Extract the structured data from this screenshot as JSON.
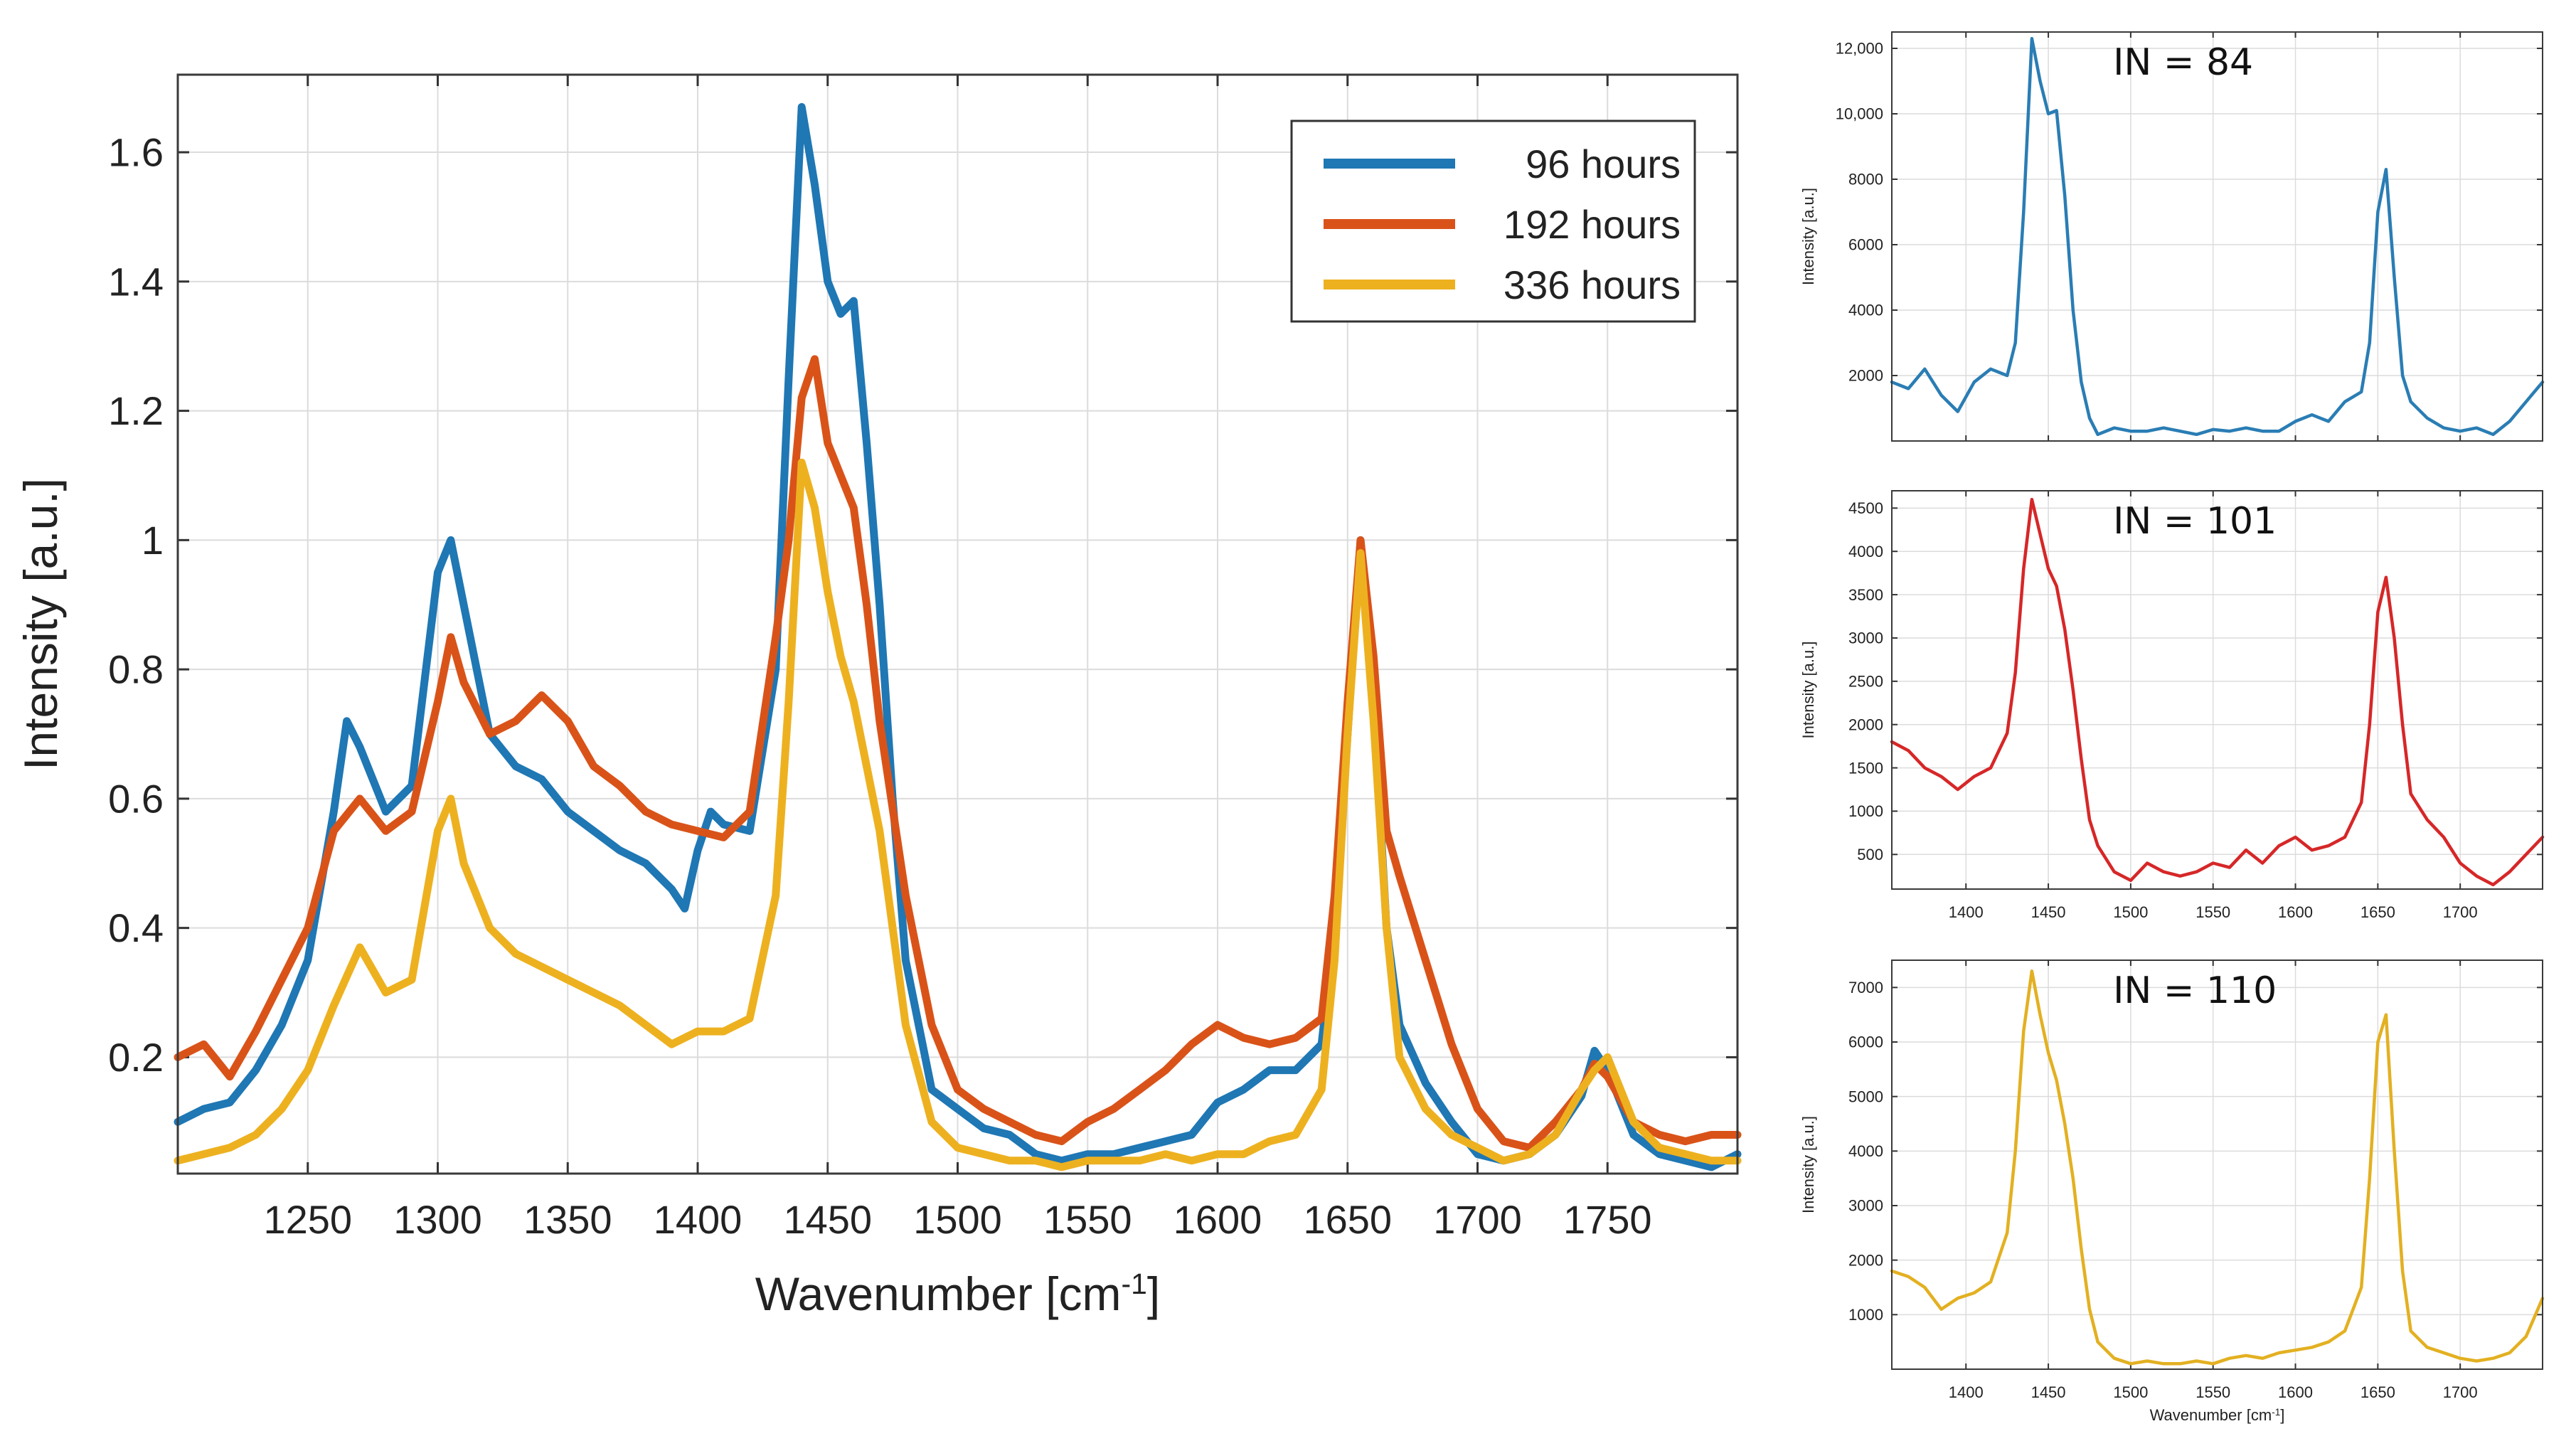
{
  "chart_data": [
    {
      "type": "line",
      "xlabel": "Wavenumber [cm",
      "xlabel_sup": "-1",
      "xlabel_close": "]",
      "ylabel": "Intensity [a.u.]",
      "xlim": [
        1200,
        1800
      ],
      "ylim": [
        0.02,
        1.72
      ],
      "xticks": [
        1250,
        1300,
        1350,
        1400,
        1450,
        1500,
        1550,
        1600,
        1650,
        1700,
        1750
      ],
      "yticks": [
        0.2,
        0.4,
        0.6,
        0.8,
        1.0
      ],
      "ytick_labels": [
        "0.2",
        "0.4",
        "0.6",
        "0.8",
        "1"
      ],
      "yticks_upper": [
        1.2,
        1.4,
        1.6
      ],
      "ytick_labels_upper": [
        "1.2",
        "1.4",
        "1.6"
      ],
      "grid": true,
      "legend_position": "top-right",
      "series": [
        {
          "name": "96 hours",
          "color": "#1f77b4",
          "x": [
            1200,
            1210,
            1220,
            1230,
            1240,
            1250,
            1260,
            1265,
            1270,
            1280,
            1290,
            1300,
            1305,
            1310,
            1320,
            1330,
            1340,
            1350,
            1360,
            1370,
            1380,
            1390,
            1395,
            1400,
            1405,
            1410,
            1420,
            1430,
            1435,
            1440,
            1445,
            1450,
            1455,
            1460,
            1465,
            1470,
            1475,
            1480,
            1490,
            1500,
            1510,
            1520,
            1530,
            1540,
            1550,
            1560,
            1570,
            1580,
            1590,
            1600,
            1610,
            1620,
            1630,
            1640,
            1645,
            1650,
            1655,
            1660,
            1665,
            1670,
            1680,
            1690,
            1700,
            1710,
            1720,
            1730,
            1740,
            1745,
            1750,
            1760,
            1770,
            1780,
            1790,
            1800
          ],
          "y": [
            0.1,
            0.12,
            0.13,
            0.18,
            0.25,
            0.35,
            0.58,
            0.72,
            0.68,
            0.58,
            0.62,
            0.95,
            1.0,
            0.9,
            0.7,
            0.65,
            0.63,
            0.58,
            0.55,
            0.52,
            0.5,
            0.46,
            0.43,
            0.52,
            0.58,
            0.56,
            0.55,
            0.8,
            1.25,
            1.67,
            1.55,
            1.4,
            1.35,
            1.37,
            1.15,
            0.9,
            0.6,
            0.35,
            0.15,
            0.12,
            0.09,
            0.08,
            0.05,
            0.04,
            0.05,
            0.05,
            0.06,
            0.07,
            0.08,
            0.13,
            0.15,
            0.18,
            0.18,
            0.22,
            0.4,
            0.7,
            1.0,
            0.75,
            0.4,
            0.25,
            0.16,
            0.1,
            0.05,
            0.04,
            0.05,
            0.08,
            0.14,
            0.21,
            0.18,
            0.08,
            0.05,
            0.04,
            0.03,
            0.05
          ]
        },
        {
          "name": "192 hours",
          "color": "#d95319",
          "x": [
            1200,
            1210,
            1220,
            1230,
            1240,
            1250,
            1260,
            1270,
            1280,
            1290,
            1300,
            1305,
            1310,
            1320,
            1330,
            1340,
            1350,
            1360,
            1370,
            1380,
            1390,
            1400,
            1410,
            1420,
            1430,
            1435,
            1440,
            1445,
            1450,
            1455,
            1460,
            1465,
            1470,
            1480,
            1490,
            1500,
            1510,
            1520,
            1530,
            1540,
            1550,
            1560,
            1570,
            1580,
            1590,
            1600,
            1610,
            1620,
            1630,
            1640,
            1645,
            1650,
            1655,
            1660,
            1665,
            1670,
            1680,
            1690,
            1700,
            1710,
            1720,
            1730,
            1740,
            1745,
            1750,
            1760,
            1770,
            1780,
            1790,
            1800
          ],
          "y": [
            0.2,
            0.22,
            0.17,
            0.24,
            0.32,
            0.4,
            0.55,
            0.6,
            0.55,
            0.58,
            0.75,
            0.85,
            0.78,
            0.7,
            0.72,
            0.76,
            0.72,
            0.65,
            0.62,
            0.58,
            0.56,
            0.55,
            0.54,
            0.58,
            0.85,
            1.0,
            1.22,
            1.28,
            1.15,
            1.1,
            1.05,
            0.9,
            0.72,
            0.45,
            0.25,
            0.15,
            0.12,
            0.1,
            0.08,
            0.07,
            0.1,
            0.12,
            0.15,
            0.18,
            0.22,
            0.25,
            0.23,
            0.22,
            0.23,
            0.26,
            0.45,
            0.75,
            1.0,
            0.82,
            0.55,
            0.48,
            0.35,
            0.22,
            0.12,
            0.07,
            0.06,
            0.1,
            0.15,
            0.19,
            0.17,
            0.1,
            0.08,
            0.07,
            0.08,
            0.08
          ]
        },
        {
          "name": "336 hours",
          "color": "#edb120",
          "x": [
            1200,
            1210,
            1220,
            1230,
            1240,
            1250,
            1260,
            1270,
            1280,
            1290,
            1300,
            1305,
            1310,
            1320,
            1330,
            1340,
            1350,
            1360,
            1370,
            1380,
            1390,
            1400,
            1410,
            1420,
            1430,
            1435,
            1440,
            1445,
            1450,
            1455,
            1460,
            1470,
            1480,
            1490,
            1500,
            1510,
            1520,
            1530,
            1540,
            1550,
            1560,
            1570,
            1580,
            1590,
            1600,
            1610,
            1620,
            1630,
            1640,
            1645,
            1650,
            1655,
            1660,
            1665,
            1670,
            1680,
            1690,
            1700,
            1710,
            1720,
            1730,
            1740,
            1745,
            1750,
            1760,
            1770,
            1780,
            1790,
            1800
          ],
          "y": [
            0.04,
            0.05,
            0.06,
            0.08,
            0.12,
            0.18,
            0.28,
            0.37,
            0.3,
            0.32,
            0.55,
            0.6,
            0.5,
            0.4,
            0.36,
            0.34,
            0.32,
            0.3,
            0.28,
            0.25,
            0.22,
            0.24,
            0.24,
            0.26,
            0.45,
            0.75,
            1.12,
            1.05,
            0.92,
            0.82,
            0.75,
            0.55,
            0.25,
            0.1,
            0.06,
            0.05,
            0.04,
            0.04,
            0.03,
            0.04,
            0.04,
            0.04,
            0.05,
            0.04,
            0.05,
            0.05,
            0.07,
            0.08,
            0.15,
            0.35,
            0.7,
            0.98,
            0.72,
            0.4,
            0.2,
            0.12,
            0.08,
            0.06,
            0.04,
            0.05,
            0.08,
            0.15,
            0.18,
            0.2,
            0.1,
            0.06,
            0.05,
            0.04,
            0.04
          ]
        }
      ]
    },
    {
      "type": "line",
      "annotation": "IN = 84",
      "ylabel": "Intensity [a.u.]",
      "xlim": [
        1355,
        1750
      ],
      "ylim": [
        0,
        12500
      ],
      "yticks": [
        2000,
        4000,
        6000,
        8000,
        10000,
        12000
      ],
      "ytick_labels": [
        "2000",
        "4000",
        "6000",
        "8000",
        "10,000",
        "12,000"
      ],
      "xticks": [
        1400,
        1450,
        1500,
        1550,
        1600,
        1650,
        1700
      ],
      "show_xtick_labels": false,
      "grid": true,
      "series": [
        {
          "name": "IN = 84",
          "color": "#2a7db4",
          "x": [
            1355,
            1365,
            1375,
            1385,
            1395,
            1405,
            1415,
            1425,
            1430,
            1435,
            1440,
            1445,
            1450,
            1455,
            1460,
            1465,
            1470,
            1475,
            1480,
            1490,
            1500,
            1510,
            1520,
            1530,
            1540,
            1550,
            1560,
            1570,
            1580,
            1590,
            1600,
            1610,
            1620,
            1630,
            1640,
            1645,
            1650,
            1655,
            1660,
            1665,
            1670,
            1680,
            1690,
            1700,
            1710,
            1720,
            1730,
            1740,
            1750
          ],
          "y": [
            1800,
            1600,
            2200,
            1400,
            900,
            1800,
            2200,
            2000,
            3000,
            7000,
            12300,
            11000,
            10000,
            10100,
            7500,
            4000,
            1800,
            700,
            200,
            400,
            300,
            300,
            400,
            300,
            200,
            350,
            300,
            400,
            300,
            300,
            600,
            800,
            600,
            1200,
            1500,
            3000,
            7000,
            8300,
            5000,
            2000,
            1200,
            700,
            400,
            300,
            400,
            200,
            600,
            1200,
            1800
          ]
        }
      ]
    },
    {
      "type": "line",
      "annotation": "IN = 101",
      "ylabel": "Intensity [a.u.]",
      "xlim": [
        1355,
        1750
      ],
      "ylim": [
        100,
        4700
      ],
      "yticks": [
        500,
        1000,
        1500,
        2000,
        2500,
        3000,
        3500,
        4000,
        4500
      ],
      "ytick_labels": [
        "500",
        "1000",
        "1500",
        "2000",
        "2500",
        "3000",
        "3500",
        "4000",
        "4500"
      ],
      "xticks": [
        1400,
        1450,
        1500,
        1550,
        1600,
        1650,
        1700
      ],
      "xtick_labels": [
        "1400",
        "1450",
        "1500",
        "1550",
        "1600",
        "1650",
        "1700"
      ],
      "grid": true,
      "series": [
        {
          "name": "IN = 101",
          "color": "#d62728",
          "x": [
            1355,
            1365,
            1375,
            1385,
            1395,
            1405,
            1415,
            1425,
            1430,
            1435,
            1440,
            1445,
            1450,
            1455,
            1460,
            1465,
            1470,
            1475,
            1480,
            1490,
            1500,
            1510,
            1520,
            1530,
            1540,
            1550,
            1560,
            1570,
            1580,
            1590,
            1600,
            1610,
            1620,
            1630,
            1640,
            1645,
            1650,
            1655,
            1660,
            1665,
            1670,
            1680,
            1690,
            1700,
            1710,
            1720,
            1730,
            1740,
            1750
          ],
          "y": [
            1800,
            1700,
            1500,
            1400,
            1250,
            1400,
            1500,
            1900,
            2600,
            3800,
            4600,
            4200,
            3800,
            3600,
            3100,
            2400,
            1600,
            900,
            600,
            300,
            200,
            400,
            300,
            250,
            300,
            400,
            350,
            550,
            400,
            600,
            700,
            550,
            600,
            700,
            1100,
            2000,
            3300,
            3700,
            3000,
            2000,
            1200,
            900,
            700,
            400,
            250,
            150,
            300,
            500,
            700
          ]
        }
      ]
    },
    {
      "type": "line",
      "annotation": "IN = 110",
      "ylabel": "Intensity [a.u.]",
      "xlabel": "Wavenumber [cm",
      "xlabel_sup": "-1",
      "xlabel_close": "]",
      "xlim": [
        1355,
        1750
      ],
      "ylim": [
        0,
        7500
      ],
      "yticks": [
        1000,
        2000,
        3000,
        4000,
        5000,
        6000,
        7000
      ],
      "ytick_labels": [
        "1000",
        "2000",
        "3000",
        "4000",
        "5000",
        "6000",
        "7000"
      ],
      "xticks": [
        1400,
        1450,
        1500,
        1550,
        1600,
        1650,
        1700
      ],
      "xtick_labels": [
        "1400",
        "1450",
        "1500",
        "1550",
        "1600",
        "1650",
        "1700"
      ],
      "grid": true,
      "series": [
        {
          "name": "IN = 110",
          "color": "#e3b021",
          "x": [
            1355,
            1365,
            1375,
            1385,
            1395,
            1405,
            1415,
            1425,
            1430,
            1435,
            1440,
            1445,
            1450,
            1455,
            1460,
            1465,
            1470,
            1475,
            1480,
            1490,
            1500,
            1510,
            1520,
            1530,
            1540,
            1550,
            1560,
            1570,
            1580,
            1590,
            1600,
            1610,
            1620,
            1630,
            1640,
            1645,
            1650,
            1655,
            1660,
            1665,
            1670,
            1680,
            1690,
            1700,
            1710,
            1720,
            1730,
            1740,
            1750
          ],
          "y": [
            1800,
            1700,
            1500,
            1100,
            1300,
            1400,
            1600,
            2500,
            4000,
            6200,
            7300,
            6500,
            5800,
            5300,
            4500,
            3500,
            2200,
            1100,
            500,
            200,
            100,
            150,
            100,
            100,
            150,
            100,
            200,
            250,
            200,
            300,
            350,
            400,
            500,
            700,
            1500,
            3500,
            6000,
            6500,
            4000,
            1800,
            700,
            400,
            300,
            200,
            150,
            200,
            300,
            600,
            1300
          ]
        }
      ]
    }
  ]
}
